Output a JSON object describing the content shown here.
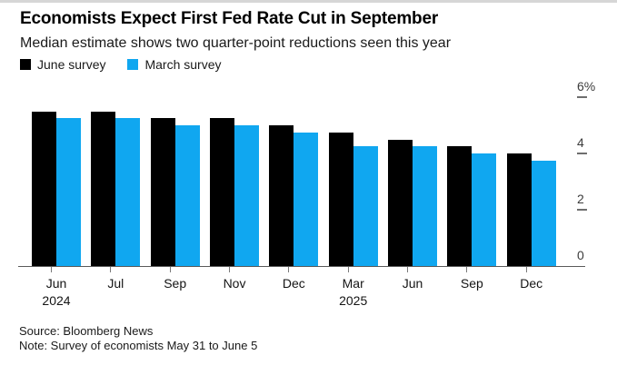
{
  "colors": {
    "june_survey": "#000000",
    "march_survey": "#10a7f0",
    "axis": "#5a5a5a",
    "background": "#ffffff"
  },
  "chart_data": {
    "type": "bar",
    "title": "Economists Expect First Fed Rate Cut in September",
    "subtitle": "Median estimate shows two quarter-point reductions seen this year",
    "categories": [
      [
        "Jun",
        "2024"
      ],
      [
        "Jul"
      ],
      [
        "Sep"
      ],
      [
        "Nov"
      ],
      [
        "Dec"
      ],
      [
        "Mar",
        "2025"
      ],
      [
        "Jun"
      ],
      [
        "Sep"
      ],
      [
        "Dec"
      ]
    ],
    "series": [
      {
        "name": "June survey",
        "color": "#000000",
        "values": [
          5.5,
          5.5,
          5.25,
          5.25,
          5.0,
          4.75,
          4.5,
          4.25,
          4.0
        ]
      },
      {
        "name": "March survey",
        "color": "#10a7f0",
        "values": [
          5.25,
          5.25,
          5.0,
          5.0,
          4.75,
          4.25,
          4.25,
          4.0,
          3.75
        ]
      }
    ],
    "ylabel": "%",
    "ylim": [
      0,
      6
    ],
    "yticks": [
      {
        "value": 6,
        "label": "6%"
      },
      {
        "value": 4,
        "label": "4"
      },
      {
        "value": 2,
        "label": "2"
      },
      {
        "value": 0,
        "label": "0"
      }
    ],
    "legend_position": "top-left",
    "grid": false
  },
  "footer": {
    "source": "Source: Bloomberg News",
    "note": "Note: Survey of economists May 31 to June 5"
  }
}
